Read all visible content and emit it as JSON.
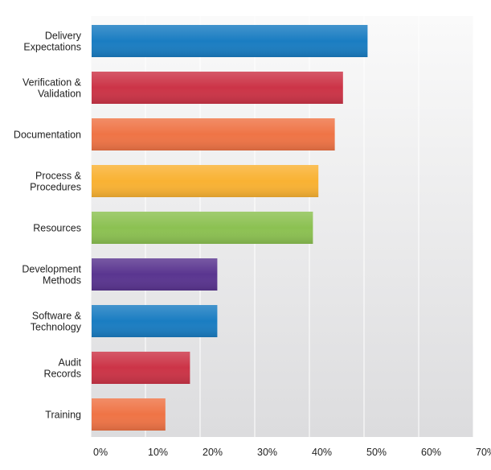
{
  "chart_data": {
    "type": "bar",
    "orientation": "horizontal",
    "categories": [
      [
        "Delivery",
        "Expectations"
      ],
      [
        "Verification &",
        "Validation"
      ],
      [
        "Documentation"
      ],
      [
        "Process &",
        "Procedures"
      ],
      [
        "Resources"
      ],
      [
        "Development",
        "Methods"
      ],
      [
        "Software &",
        "Technology"
      ],
      [
        "Audit",
        "Records"
      ],
      [
        "Training"
      ]
    ],
    "values": [
      50.5,
      46,
      44.5,
      41.5,
      40.5,
      23,
      23,
      18,
      13.5
    ],
    "colors": [
      "#1a7dc2",
      "#cc3447",
      "#ef7446",
      "#f9b233",
      "#8cc152",
      "#5a3590",
      "#1a7dc2",
      "#cc3447",
      "#ef7446"
    ],
    "xlim": [
      0,
      70
    ],
    "xticks": [
      0,
      10,
      20,
      30,
      40,
      50,
      60,
      70
    ],
    "tick_suffix": "%",
    "grid": true,
    "title": "",
    "xlabel": "",
    "ylabel": ""
  }
}
